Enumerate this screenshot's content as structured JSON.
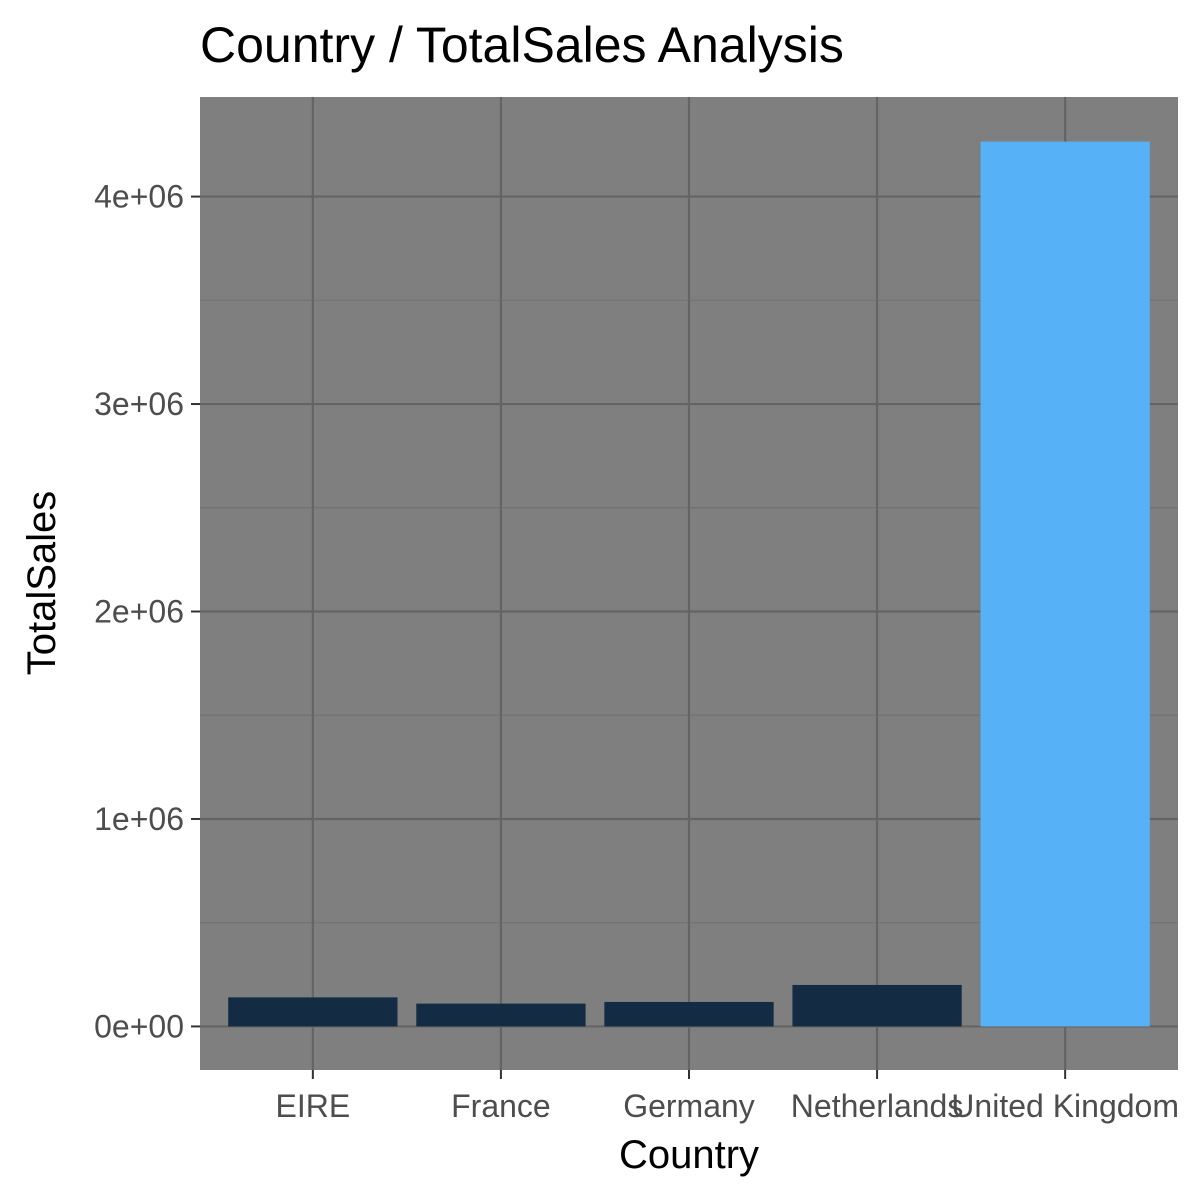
{
  "chart_data": {
    "type": "bar",
    "title": "Country / TotalSales Analysis",
    "xlabel": "Country",
    "ylabel": "TotalSales",
    "categories": [
      "EIRE",
      "France",
      "Germany",
      "Netherlands",
      "United Kingdom"
    ],
    "values": [
      140000,
      110000,
      118000,
      200000,
      4265000
    ],
    "bar_colors": [
      "#132b43",
      "#132b43",
      "#132b43",
      "#132b43",
      "#56b1f7"
    ],
    "ylim": [
      -210000,
      4480000
    ],
    "y_ticks": [
      0,
      1000000,
      2000000,
      3000000,
      4000000
    ],
    "y_tick_labels": [
      "0e+00",
      "1e+06",
      "2e+06",
      "3e+06",
      "4e+06"
    ],
    "grid": true,
    "legend": "none",
    "panel_background": "#7f7f7f",
    "grid_major_color": "#646464",
    "grid_minor_color": "#737373"
  }
}
